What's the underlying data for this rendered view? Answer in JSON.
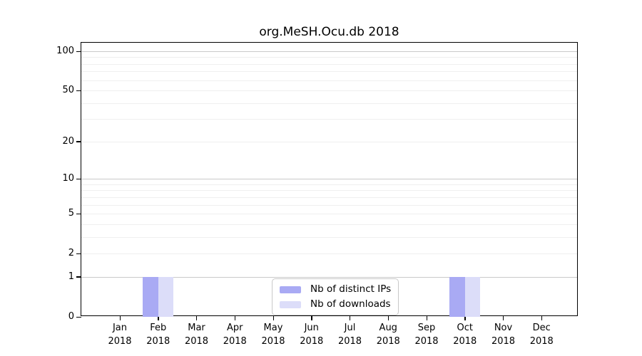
{
  "title": "org.MeSH.Ocu.db 2018",
  "colors": {
    "distinct_ips": "#a9aaf4",
    "downloads": "#dcddf9",
    "grid_major": "#c9c9c9",
    "grid_minor": "#efefef",
    "axis": "#000000",
    "legend_border": "#c9c9c9",
    "background": "#ffffff",
    "text": "#000000"
  },
  "chart_data": {
    "type": "bar",
    "title": "org.MeSH.Ocu.db 2018",
    "x_categories_line1": [
      "Jan",
      "Feb",
      "Mar",
      "Apr",
      "May",
      "Jun",
      "Jul",
      "Aug",
      "Sep",
      "Oct",
      "Nov",
      "Dec"
    ],
    "x_categories_line2": "2018",
    "series": [
      {
        "name": "Nb of distinct IPs",
        "color_key": "distinct_ips",
        "values": [
          0,
          1,
          0,
          0,
          0,
          0,
          0,
          0,
          0,
          1,
          0,
          0
        ]
      },
      {
        "name": "Nb of downloads",
        "color_key": "downloads",
        "values": [
          0,
          1,
          0,
          0,
          0,
          0,
          0,
          0,
          0,
          1,
          0,
          0
        ]
      }
    ],
    "y_scale": "log1p",
    "y_ticks": [
      100,
      50,
      20,
      10,
      5,
      2,
      1,
      0
    ],
    "y_gridlines_major": [
      1,
      10,
      100
    ],
    "y_gridlines_minor": [
      2,
      3,
      4,
      5,
      6,
      7,
      8,
      9,
      20,
      30,
      40,
      50,
      60,
      70,
      80,
      90
    ],
    "ylim": [
      0,
      115
    ],
    "xlabel": "",
    "ylabel": "",
    "grid": true,
    "legend_position": "bottom-center"
  }
}
